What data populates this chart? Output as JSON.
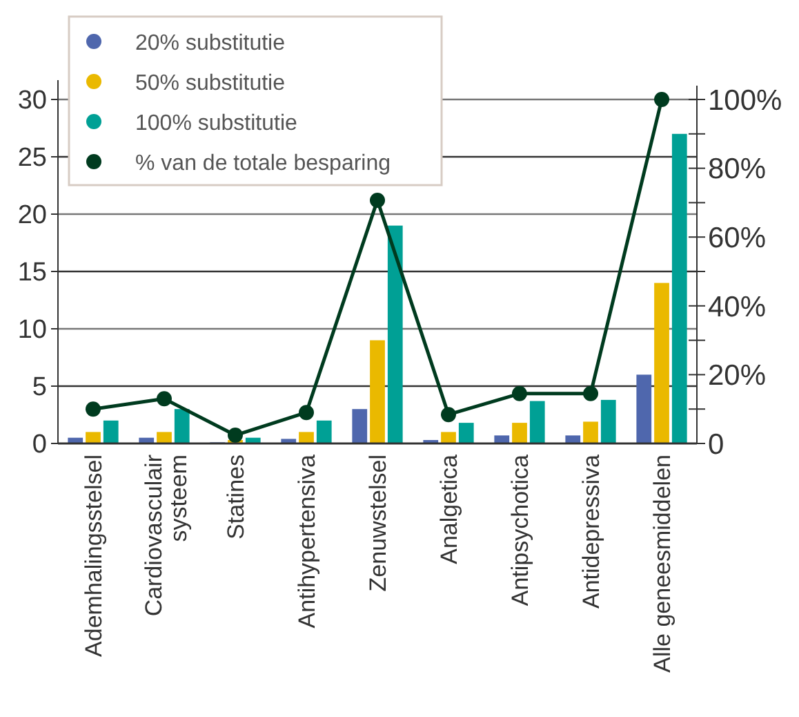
{
  "chart_data": {
    "type": "bar",
    "categories": [
      "Ademhalingsstelsel",
      "Cardiovasculair systeem",
      "Statines",
      "Antihypertensiva",
      "Zenuwstelsel",
      "Analgetica",
      "Antipsychotica",
      "Antidepressiva",
      "Alle geneesmiddelen"
    ],
    "series": [
      {
        "name": "20% substitutie",
        "color": "#4f67ad",
        "values": [
          0.5,
          0.5,
          0.1,
          0.4,
          3,
          0.3,
          0.7,
          0.7,
          6
        ]
      },
      {
        "name": "50% substitutie",
        "color": "#eab900",
        "values": [
          1,
          1,
          0.3,
          1,
          9,
          1,
          1.8,
          1.9,
          14
        ]
      },
      {
        "name": "100% substitutie",
        "color": "#00a095",
        "values": [
          2,
          3,
          0.5,
          2,
          19,
          1.8,
          3.7,
          3.8,
          27
        ]
      },
      {
        "name": "%  van de totale besparing",
        "type": "line",
        "axis": "y2",
        "color": "#003b1f",
        "marker": "circle",
        "values": [
          10,
          13,
          2.4,
          9,
          70.7,
          8.4,
          14.5,
          14.5,
          100
        ]
      }
    ],
    "ylim": [
      0,
      30
    ],
    "yticks": [
      0,
      5,
      10,
      15,
      20,
      25,
      30
    ],
    "y2lim": [
      0,
      100
    ],
    "y2ticks": [
      {
        "value": 0,
        "label": "0"
      },
      {
        "value": 10,
        "label": null
      },
      {
        "value": 20,
        "label": "20%"
      },
      {
        "value": 30,
        "label": null
      },
      {
        "value": 40,
        "label": "40%"
      },
      {
        "value": 50,
        "label": null
      },
      {
        "value": 60,
        "label": "60%"
      },
      {
        "value": 70,
        "label": null
      },
      {
        "value": 80,
        "label": "80%"
      },
      {
        "value": 90,
        "label": null
      },
      {
        "value": 100,
        "label": "100%"
      }
    ],
    "grid": "y",
    "legend": "top left"
  }
}
